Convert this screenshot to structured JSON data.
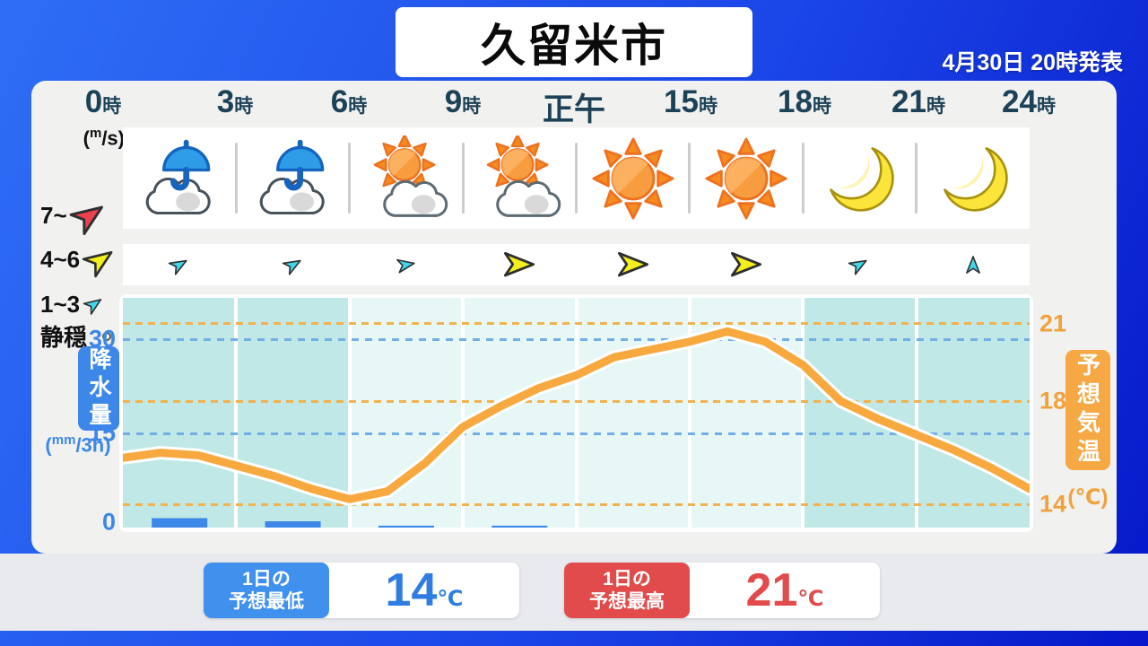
{
  "header": {
    "title": "久留米市",
    "announced": "4月30日 20時発表"
  },
  "time_axis": [
    {
      "num": "0",
      "unit": "時"
    },
    {
      "num": "3",
      "unit": "時"
    },
    {
      "num": "6",
      "unit": "時"
    },
    {
      "num": "9",
      "unit": "時"
    },
    {
      "num": "正午",
      "unit": ""
    },
    {
      "num": "15",
      "unit": "時"
    },
    {
      "num": "18",
      "unit": "時"
    },
    {
      "num": "21",
      "unit": "時"
    },
    {
      "num": "24",
      "unit": "時"
    }
  ],
  "wind_legend": {
    "unit": {
      "open": "(",
      "sup": "m",
      "rest": "/s)"
    },
    "rows": [
      {
        "label": "7~",
        "strength": "strong"
      },
      {
        "label": "4~6",
        "strength": "moderate"
      },
      {
        "label": "1~3",
        "strength": "light"
      },
      {
        "label": "静穏",
        "strength": "calm"
      }
    ]
  },
  "forecast_slots": [
    {
      "hours": "0-3",
      "weather": "rain-cloud",
      "wind_strength": "light",
      "wind_dir_deg": -30
    },
    {
      "hours": "3-6",
      "weather": "rain-cloud",
      "wind_strength": "light",
      "wind_dir_deg": -30
    },
    {
      "hours": "6-9",
      "weather": "sun-cloud",
      "wind_strength": "light",
      "wind_dir_deg": -10
    },
    {
      "hours": "9-12",
      "weather": "sun-cloud",
      "wind_strength": "moderate",
      "wind_dir_deg": 0
    },
    {
      "hours": "12-15",
      "weather": "sunny",
      "wind_strength": "moderate",
      "wind_dir_deg": 0
    },
    {
      "hours": "15-18",
      "weather": "sunny",
      "wind_strength": "moderate",
      "wind_dir_deg": 0
    },
    {
      "hours": "18-21",
      "weather": "moon",
      "wind_strength": "light",
      "wind_dir_deg": -30
    },
    {
      "hours": "21-24",
      "weather": "moon",
      "wind_strength": "light",
      "wind_dir_deg": -90
    }
  ],
  "chart_data": {
    "type": "line+bar",
    "x_hours": [
      0,
      1,
      2,
      3,
      4,
      5,
      6,
      7,
      8,
      9,
      10,
      11,
      12,
      13,
      14,
      15,
      16,
      17,
      18,
      19,
      20,
      21,
      22,
      23,
      24
    ],
    "series": [
      {
        "name": "予想気温",
        "type": "line",
        "unit": "℃",
        "axis": "right",
        "color": "#f7a940",
        "values": [
          15.8,
          16.0,
          15.9,
          15.5,
          15.1,
          14.6,
          14.2,
          14.5,
          15.6,
          17.0,
          17.8,
          18.5,
          19.0,
          19.7,
          20.0,
          20.3,
          20.7,
          20.3,
          19.4,
          18.0,
          17.3,
          16.7,
          16.1,
          15.4,
          14.6
        ],
        "ylim": [
          13.1,
          22.0
        ],
        "ticks": [
          21,
          18,
          14
        ]
      },
      {
        "name": "降水量",
        "type": "bar",
        "unit": "mm/3h",
        "axis": "left",
        "color": "#3d87e8",
        "slot_hours": [
          [
            0,
            3
          ],
          [
            3,
            6
          ],
          [
            6,
            9
          ],
          [
            9,
            12
          ],
          [
            12,
            15
          ],
          [
            15,
            18
          ],
          [
            18,
            21
          ],
          [
            21,
            24
          ]
        ],
        "values": [
          1.5,
          1,
          0.3,
          0.3,
          0,
          0,
          0,
          0
        ],
        "ylim": [
          0,
          36.6
        ],
        "ticks": [
          30,
          15,
          0
        ]
      }
    ],
    "night_bands_hours": [
      [
        0,
        6
      ],
      [
        18,
        24
      ]
    ],
    "legend_position": "none",
    "grid": {
      "temp_line_color": "#f2b24e",
      "precip_line_color": "#74aee6",
      "night_band_color": "#bfe8e6",
      "day_band_color": "#e7f7f6"
    }
  },
  "left_axis": {
    "badge": "降水量",
    "unit": {
      "open": "(",
      "sup": "mm",
      "rest": "/3h)"
    }
  },
  "right_axis": {
    "badge": "予想気温",
    "unit": "(℃)"
  },
  "summary": {
    "min": {
      "line1": "1日の",
      "line2": "予想最低",
      "value": "14",
      "unit": "℃"
    },
    "max": {
      "line1": "1日の",
      "line2": "予想最高",
      "value": "21",
      "unit": "℃"
    }
  },
  "colors": {
    "wind_strong": "#ef4050",
    "wind_moderate": "#f3ee1e",
    "wind_light": "#3fd8e8",
    "min_accent": "#4090ee",
    "max_accent": "#e14b4b",
    "temp_accent": "#f5a843",
    "precip_accent": "#3d87e8"
  }
}
